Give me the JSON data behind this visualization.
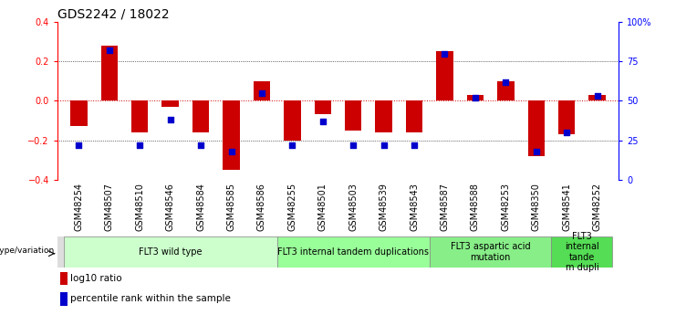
{
  "title": "GDS2242 / 18022",
  "samples": [
    "GSM48254",
    "GSM48507",
    "GSM48510",
    "GSM48546",
    "GSM48584",
    "GSM48585",
    "GSM48586",
    "GSM48255",
    "GSM48501",
    "GSM48503",
    "GSM48539",
    "GSM48543",
    "GSM48587",
    "GSM48588",
    "GSM48253",
    "GSM48350",
    "GSM48541",
    "GSM48252"
  ],
  "log10_ratio": [
    -0.13,
    0.28,
    -0.16,
    -0.03,
    -0.16,
    -0.35,
    0.1,
    -0.2,
    -0.07,
    -0.15,
    -0.16,
    -0.16,
    0.25,
    0.03,
    0.1,
    -0.28,
    -0.17,
    0.03
  ],
  "percentile_rank": [
    22,
    82,
    22,
    38,
    22,
    18,
    55,
    22,
    37,
    22,
    22,
    22,
    80,
    52,
    62,
    18,
    30,
    53
  ],
  "bar_color": "#cc0000",
  "dot_color": "#0000cc",
  "ylim": [
    -0.4,
    0.4
  ],
  "yticks_left": [
    -0.4,
    -0.2,
    0.0,
    0.2,
    0.4
  ],
  "yticks_right": [
    0,
    25,
    50,
    75,
    100
  ],
  "groups": [
    {
      "label": "FLT3 wild type",
      "start": 0,
      "end": 6,
      "color": "#ccffcc"
    },
    {
      "label": "FLT3 internal tandem duplications",
      "start": 7,
      "end": 11,
      "color": "#99ff99"
    },
    {
      "label": "FLT3 aspartic acid\nmutation",
      "start": 12,
      "end": 15,
      "color": "#88ee88"
    },
    {
      "label": "FLT3\ninternal\ntande\nm dupli",
      "start": 16,
      "end": 17,
      "color": "#55dd55"
    }
  ],
  "group_row_label": "genotype/variation",
  "legend_red": "log10 ratio",
  "legend_blue": "percentile rank within the sample",
  "bar_color_hex": "#cc0000",
  "dot_color_hex": "#0000cc",
  "bg_color": "#ffffff",
  "bar_width": 0.55,
  "dot_size": 22,
  "title_fontsize": 10,
  "tick_fontsize": 7,
  "group_fontsize": 7
}
